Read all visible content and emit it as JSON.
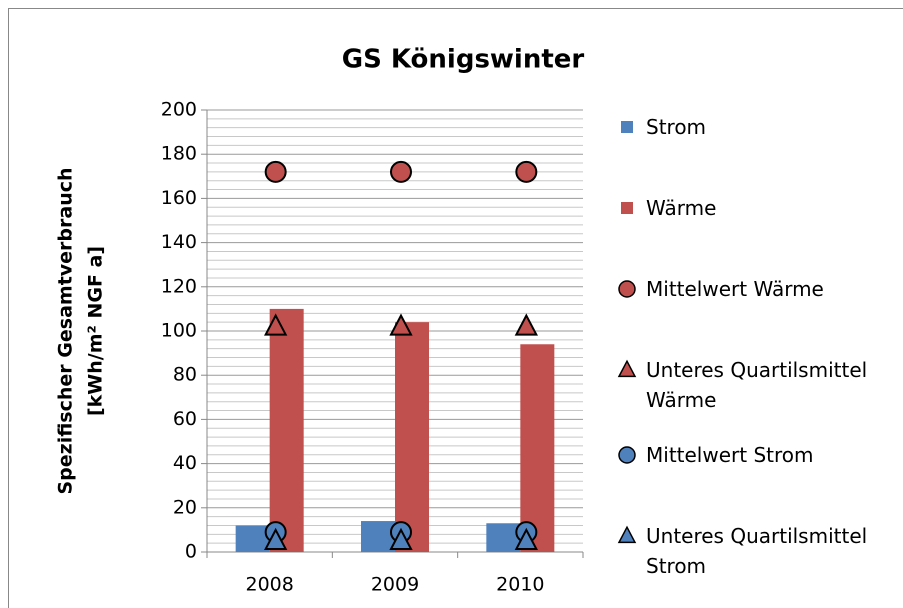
{
  "chart_data": {
    "type": "bar",
    "title": "GS Königswinter",
    "y_label": [
      "Spezifischer Gesamtverbrauch",
      "[kWh/m² NGF a]"
    ],
    "categories": [
      "2008",
      "2009",
      "2010"
    ],
    "ylim": [
      0,
      200
    ],
    "yticks": [
      0,
      20,
      40,
      60,
      80,
      100,
      120,
      140,
      160,
      180,
      200
    ],
    "grid": true,
    "minor_grid": true,
    "legend": "right",
    "series": [
      {
        "name": "Strom",
        "type": "bar",
        "color": "#4f81bd",
        "values": [
          12,
          14,
          13
        ]
      },
      {
        "name": "Wärme",
        "type": "bar",
        "color": "#c0504d",
        "values": [
          110,
          104,
          94
        ]
      },
      {
        "name": "Mittelwert Wärme",
        "type": "scatter",
        "marker": "circle",
        "color": "#c0504d",
        "values": [
          172,
          172,
          172
        ]
      },
      {
        "name": "Unteres Quartilsmittel Wärme",
        "type": "scatter",
        "marker": "triangle",
        "color": "#c0504d",
        "values": [
          102,
          102,
          102
        ]
      },
      {
        "name": "Mittelwert Strom",
        "type": "scatter",
        "marker": "circle",
        "color": "#4f81bd",
        "values": [
          9,
          9,
          9
        ]
      },
      {
        "name": "Unteres Quartilsmittel Strom",
        "type": "scatter",
        "marker": "triangle",
        "color": "#4f81bd",
        "values": [
          5,
          5,
          5
        ]
      }
    ]
  }
}
